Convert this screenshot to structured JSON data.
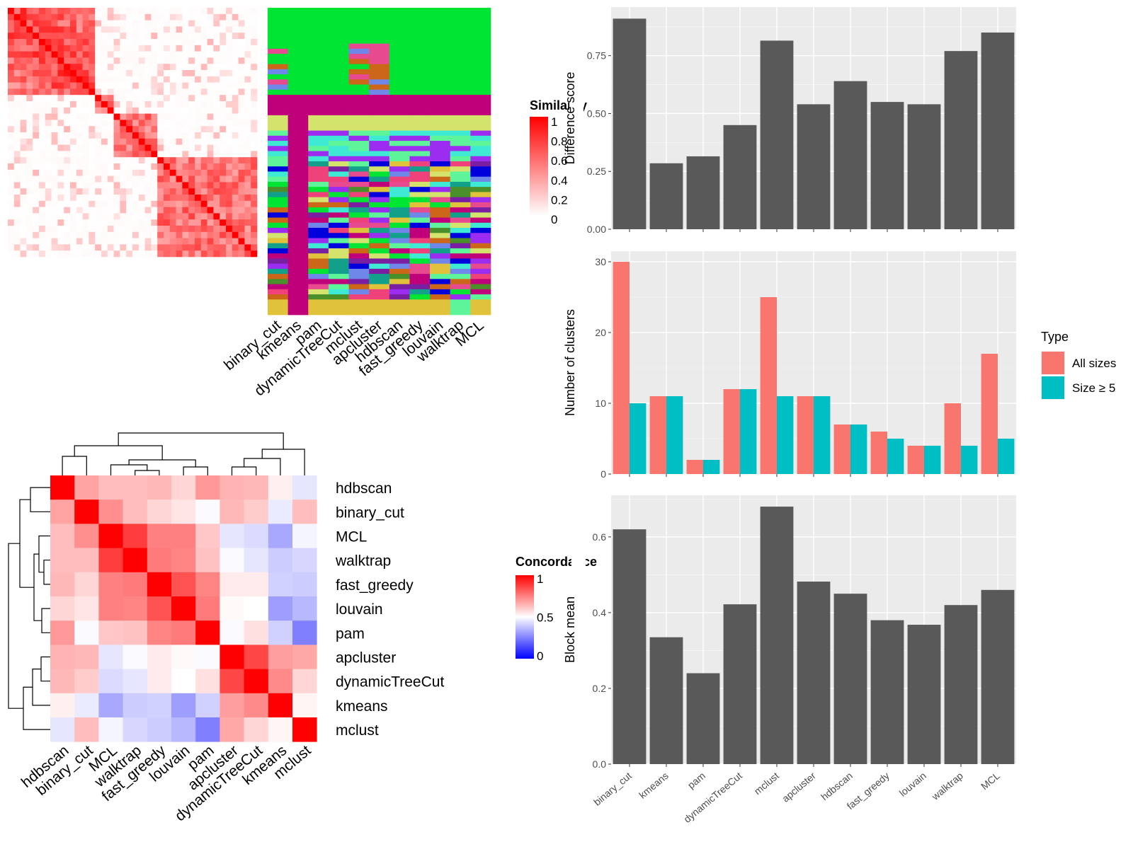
{
  "methods": [
    "binary_cut",
    "kmeans",
    "pam",
    "dynamicTreeCut",
    "mclust",
    "apcluster",
    "hdbscan",
    "fast_greedy",
    "louvain",
    "walktrap",
    "MCL"
  ],
  "similarity_legend": {
    "title": "Similarity",
    "ticks": [
      "1",
      "0.8",
      "0.6",
      "0.4",
      "0.2",
      "0"
    ],
    "colors": [
      "#ffffff",
      "#ff0000"
    ]
  },
  "concordance_legend": {
    "title": "Concordance",
    "ticks": [
      "1",
      "0.5",
      "0"
    ],
    "colors": [
      "#0000ff",
      "#ffffff",
      "#ff0000"
    ]
  },
  "chart_data": [
    {
      "type": "bar",
      "categories": [
        "binary_cut",
        "kmeans",
        "pam",
        "dynamicTreeCut",
        "mclust",
        "apcluster",
        "hdbscan",
        "fast_greedy",
        "louvain",
        "walktrap",
        "MCL"
      ],
      "values": [
        0.91,
        0.285,
        0.315,
        0.45,
        0.815,
        0.54,
        0.64,
        0.55,
        0.54,
        0.77,
        0.85
      ],
      "ylabel": "Difference score",
      "ylim": [
        0,
        0.96
      ],
      "yticks": [
        "0.00",
        "0.25",
        "0.50",
        "0.75"
      ],
      "color": "#595959",
      "grid": true
    },
    {
      "type": "bar",
      "categories": [
        "binary_cut",
        "kmeans",
        "pam",
        "dynamicTreeCut",
        "mclust",
        "apcluster",
        "hdbscan",
        "fast_greedy",
        "louvain",
        "walktrap",
        "MCL"
      ],
      "series": [
        {
          "name": "All sizes",
          "values": [
            30,
            11,
            2,
            12,
            25,
            11,
            7,
            6,
            4,
            10,
            17
          ],
          "color": "#F8766D"
        },
        {
          "name": "Size ≥ 5",
          "values": [
            10,
            11,
            2,
            12,
            11,
            11,
            7,
            5,
            4,
            4,
            5
          ],
          "color": "#00BFC4"
        }
      ],
      "ylabel": "Number of clusters",
      "ylim": [
        0,
        31.5
      ],
      "yticks": [
        "0",
        "10",
        "20",
        "30"
      ],
      "legend": {
        "title": "Type",
        "placement": "right"
      },
      "grid": true
    },
    {
      "type": "bar",
      "categories": [
        "binary_cut",
        "kmeans",
        "pam",
        "dynamicTreeCut",
        "mclust",
        "apcluster",
        "hdbscan",
        "fast_greedy",
        "louvain",
        "walktrap",
        "MCL"
      ],
      "values": [
        0.62,
        0.335,
        0.24,
        0.422,
        0.68,
        0.482,
        0.45,
        0.38,
        0.368,
        0.42,
        0.46
      ],
      "ylabel": "Block mean",
      "ylim": [
        0,
        0.71
      ],
      "yticks": [
        "0.0",
        "0.2",
        "0.4",
        "0.6"
      ],
      "color": "#595959",
      "grid": true
    },
    {
      "type": "heatmap",
      "labels": [
        "hdbscan",
        "binary_cut",
        "MCL",
        "walktrap",
        "fast_greedy",
        "louvain",
        "pam",
        "apcluster",
        "dynamicTreeCut",
        "kmeans",
        "mclust"
      ],
      "values": [
        [
          1.0,
          0.68,
          0.63,
          0.63,
          0.64,
          0.58,
          0.7,
          0.65,
          0.64,
          0.53,
          0.45
        ],
        [
          0.68,
          1.0,
          0.72,
          0.63,
          0.58,
          0.55,
          0.49,
          0.64,
          0.6,
          0.46,
          0.63
        ],
        [
          0.63,
          0.72,
          1.0,
          0.88,
          0.75,
          0.75,
          0.61,
          0.45,
          0.43,
          0.33,
          0.48
        ],
        [
          0.63,
          0.63,
          0.88,
          1.0,
          0.76,
          0.74,
          0.62,
          0.49,
          0.45,
          0.4,
          0.42
        ],
        [
          0.64,
          0.58,
          0.75,
          0.76,
          1.0,
          0.84,
          0.74,
          0.54,
          0.54,
          0.41,
          0.4
        ],
        [
          0.58,
          0.55,
          0.75,
          0.74,
          0.84,
          1.0,
          0.76,
          0.51,
          0.5,
          0.31,
          0.36
        ],
        [
          0.7,
          0.49,
          0.61,
          0.62,
          0.74,
          0.76,
          1.0,
          0.49,
          0.56,
          0.41,
          0.25
        ],
        [
          0.65,
          0.64,
          0.45,
          0.49,
          0.54,
          0.51,
          0.49,
          1.0,
          0.86,
          0.69,
          0.67
        ],
        [
          0.64,
          0.6,
          0.43,
          0.45,
          0.54,
          0.5,
          0.56,
          0.86,
          1.0,
          0.73,
          0.58
        ],
        [
          0.53,
          0.46,
          0.33,
          0.4,
          0.41,
          0.31,
          0.41,
          0.69,
          0.73,
          1.0,
          0.52
        ],
        [
          0.45,
          0.63,
          0.48,
          0.42,
          0.4,
          0.36,
          0.25,
          0.67,
          0.58,
          0.52,
          1.0
        ]
      ],
      "legend": {
        "title": "Concordance",
        "placement": "right"
      }
    }
  ]
}
